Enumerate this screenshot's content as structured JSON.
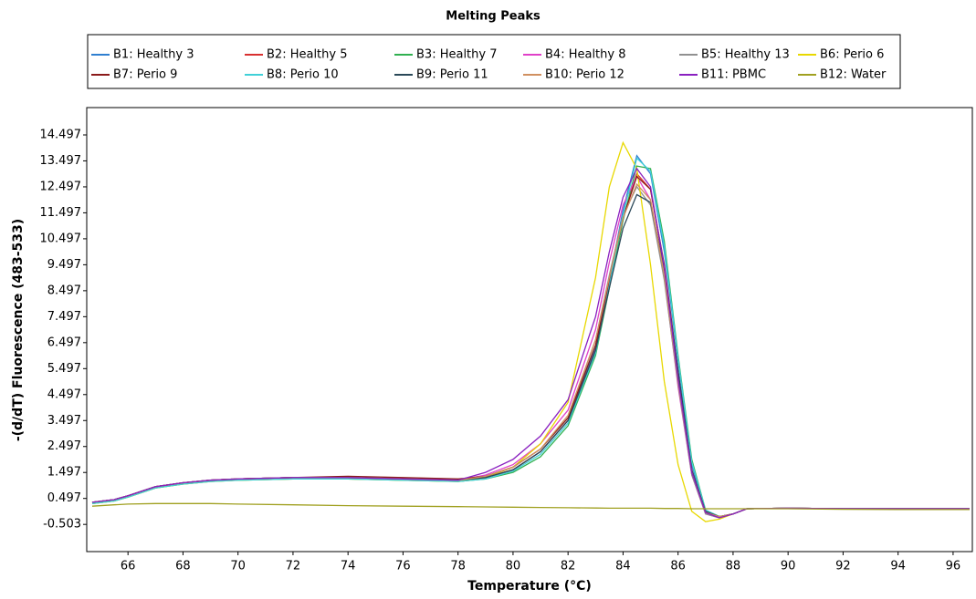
{
  "chart_data": {
    "type": "line",
    "title": "Melting Peaks",
    "x_label": "Temperature (°C)",
    "y_label": "-(d/dT) Fluorescence (483-533)",
    "legend": "top",
    "grid": false,
    "xlim": [
      64.5,
      96.7
    ],
    "ylim": [
      -1.55,
      15.55
    ],
    "xticks": [
      66,
      68,
      70,
      72,
      74,
      76,
      78,
      80,
      82,
      84,
      86,
      88,
      90,
      92,
      94,
      96
    ],
    "yticks": [
      -0.503,
      0.497,
      1.497,
      2.497,
      3.497,
      4.497,
      5.497,
      6.497,
      7.497,
      8.497,
      9.497,
      10.497,
      11.497,
      12.497,
      13.497,
      14.497
    ],
    "x": [
      64.7,
      65.5,
      66,
      67,
      68,
      69,
      70,
      72,
      74,
      76,
      78,
      79,
      80,
      81,
      82,
      83,
      83.5,
      84,
      84.5,
      85,
      85.5,
      86,
      86.5,
      87,
      87.5,
      88,
      88.5,
      90,
      92,
      94,
      96.6
    ],
    "series": [
      {
        "name": "B1: Healthy 3",
        "color": "#2f7fd0",
        "values": [
          0.35,
          0.45,
          0.6,
          0.95,
          1.1,
          1.2,
          1.25,
          1.3,
          1.3,
          1.25,
          1.2,
          1.3,
          1.6,
          2.3,
          3.5,
          6.3,
          8.9,
          11.6,
          13.7,
          13.0,
          10.0,
          5.8,
          1.8,
          0.0,
          -0.2,
          -0.1,
          0.1,
          0.12,
          0.1,
          0.1,
          0.1
        ]
      },
      {
        "name": "B2: Healthy 5",
        "color": "#d83030",
        "values": [
          0.35,
          0.45,
          0.6,
          0.95,
          1.1,
          1.2,
          1.25,
          1.3,
          1.3,
          1.25,
          1.2,
          1.3,
          1.6,
          2.3,
          3.5,
          6.2,
          8.7,
          11.3,
          13.0,
          12.4,
          9.4,
          5.2,
          1.5,
          -0.05,
          -0.2,
          -0.1,
          0.1,
          0.12,
          0.1,
          0.1,
          0.1
        ]
      },
      {
        "name": "B3: Healthy 7",
        "color": "#30b050",
        "values": [
          0.3,
          0.4,
          0.55,
          0.9,
          1.05,
          1.15,
          1.2,
          1.25,
          1.25,
          1.2,
          1.15,
          1.25,
          1.5,
          2.1,
          3.3,
          6.0,
          8.6,
          11.2,
          13.3,
          13.2,
          10.4,
          6.0,
          2.0,
          0.05,
          -0.2,
          -0.1,
          0.1,
          0.12,
          0.1,
          0.1,
          0.1
        ]
      },
      {
        "name": "B4: Healthy 8",
        "color": "#e040c8",
        "values": [
          0.35,
          0.45,
          0.6,
          0.95,
          1.1,
          1.2,
          1.25,
          1.3,
          1.3,
          1.25,
          1.2,
          1.4,
          1.8,
          2.6,
          3.9,
          7.0,
          9.6,
          11.8,
          12.9,
          12.0,
          9.0,
          4.8,
          1.4,
          -0.1,
          -0.25,
          -0.1,
          0.1,
          0.12,
          0.1,
          0.1,
          0.1
        ]
      },
      {
        "name": "B5: Healthy 13",
        "color": "#909090",
        "values": [
          0.35,
          0.45,
          0.6,
          0.95,
          1.1,
          1.2,
          1.25,
          1.3,
          1.3,
          1.25,
          1.2,
          1.35,
          1.7,
          2.4,
          3.6,
          6.6,
          9.1,
          11.4,
          12.5,
          11.8,
          8.9,
          4.9,
          1.4,
          -0.1,
          -0.25,
          -0.1,
          0.1,
          0.12,
          0.1,
          0.1,
          0.1
        ]
      },
      {
        "name": "B6: Perio 6",
        "color": "#e8d800",
        "values": [
          0.3,
          0.4,
          0.55,
          0.9,
          1.05,
          1.15,
          1.2,
          1.25,
          1.25,
          1.2,
          1.15,
          1.3,
          1.7,
          2.6,
          4.2,
          9.0,
          12.5,
          14.2,
          13.2,
          9.5,
          5.0,
          1.8,
          0.0,
          -0.4,
          -0.3,
          -0.1,
          0.1,
          0.12,
          0.1,
          0.1,
          0.1
        ]
      },
      {
        "name": "B7: Perio 9",
        "color": "#8b1a1a",
        "values": [
          0.35,
          0.45,
          0.6,
          0.95,
          1.1,
          1.2,
          1.25,
          1.3,
          1.35,
          1.3,
          1.25,
          1.35,
          1.7,
          2.4,
          3.6,
          6.4,
          8.9,
          11.3,
          12.9,
          12.4,
          9.5,
          5.4,
          1.6,
          0.0,
          -0.2,
          -0.1,
          0.1,
          0.12,
          0.1,
          0.1,
          0.1
        ]
      },
      {
        "name": "B8: Perio 10",
        "color": "#40d0d8",
        "values": [
          0.3,
          0.4,
          0.55,
          0.9,
          1.05,
          1.15,
          1.2,
          1.25,
          1.25,
          1.2,
          1.15,
          1.25,
          1.55,
          2.2,
          3.4,
          6.1,
          8.7,
          11.4,
          13.6,
          13.1,
          10.2,
          5.9,
          1.9,
          0.05,
          -0.2,
          -0.1,
          0.1,
          0.12,
          0.1,
          0.1,
          0.1
        ]
      },
      {
        "name": "B9: Perio 11",
        "color": "#2a4858",
        "values": [
          0.35,
          0.45,
          0.6,
          0.95,
          1.1,
          1.2,
          1.25,
          1.3,
          1.3,
          1.25,
          1.2,
          1.3,
          1.6,
          2.3,
          3.5,
          6.2,
          8.6,
          10.9,
          12.2,
          11.9,
          9.3,
          5.4,
          1.6,
          0.0,
          -0.2,
          -0.1,
          0.1,
          0.12,
          0.1,
          0.1,
          0.1
        ]
      },
      {
        "name": "B10: Perio 12",
        "color": "#d09060",
        "values": [
          0.35,
          0.45,
          0.6,
          0.95,
          1.1,
          1.2,
          1.25,
          1.3,
          1.3,
          1.25,
          1.2,
          1.35,
          1.7,
          2.4,
          3.7,
          6.6,
          9.0,
          11.3,
          12.6,
          12.0,
          9.1,
          5.0,
          1.5,
          -0.05,
          -0.2,
          -0.1,
          0.1,
          0.12,
          0.1,
          0.1,
          0.1
        ]
      },
      {
        "name": "B11: PBMC",
        "color": "#8a20c0",
        "values": [
          0.35,
          0.45,
          0.6,
          0.95,
          1.1,
          1.2,
          1.25,
          1.3,
          1.3,
          1.25,
          1.2,
          1.5,
          2.0,
          2.9,
          4.3,
          7.5,
          10.0,
          12.1,
          13.2,
          12.5,
          9.4,
          5.1,
          1.5,
          -0.05,
          -0.25,
          -0.1,
          0.1,
          0.12,
          0.1,
          0.1,
          0.1
        ]
      },
      {
        "name": "B12: Water",
        "color": "#a0a020",
        "values": [
          0.2,
          0.25,
          0.28,
          0.3,
          0.3,
          0.3,
          0.28,
          0.25,
          0.22,
          0.2,
          0.18,
          0.17,
          0.16,
          0.15,
          0.14,
          0.13,
          0.12,
          0.12,
          0.12,
          0.12,
          0.11,
          0.11,
          0.1,
          0.1,
          0.1,
          0.1,
          0.1,
          0.1,
          0.08,
          0.07,
          0.07
        ]
      }
    ]
  }
}
